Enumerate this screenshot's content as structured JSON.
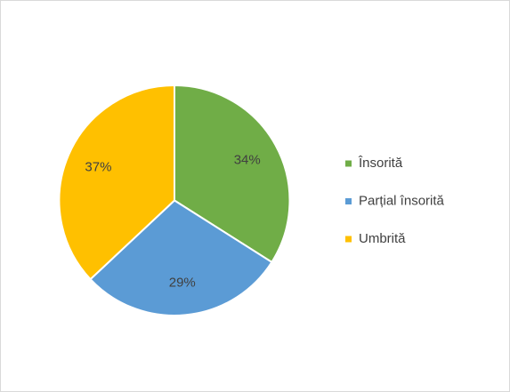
{
  "chart_data": {
    "type": "pie",
    "categories": [
      "Însorită",
      "Parțial însorită",
      "Umbrită"
    ],
    "values": [
      34,
      29,
      37
    ],
    "value_labels": [
      "34%",
      "29%",
      "37%"
    ],
    "colors": [
      "#70ad47",
      "#5b9bd5",
      "#ffc000"
    ],
    "legend": "right"
  }
}
